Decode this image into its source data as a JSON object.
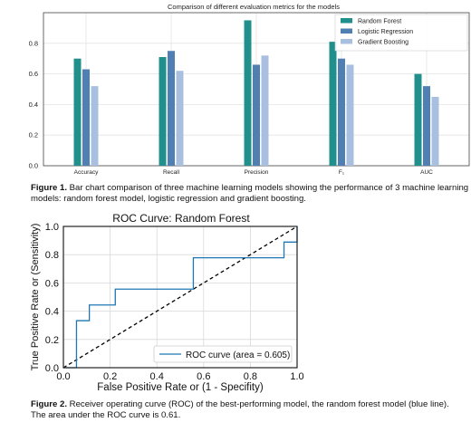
{
  "chart_data": [
    {
      "type": "bar",
      "title": "Comparison of different evaluation metrics for the models",
      "categories": [
        "Accuracy",
        "Recall",
        "Precision",
        "F₁",
        "AUC"
      ],
      "series": [
        {
          "name": "Random Forest",
          "color": "#21908c",
          "values": [
            0.7,
            0.71,
            0.95,
            0.81,
            0.6
          ]
        },
        {
          "name": "Logistic Regression",
          "color": "#4f7fb3",
          "values": [
            0.63,
            0.75,
            0.66,
            0.7,
            0.52
          ]
        },
        {
          "name": "Gradient Boosting",
          "color": "#a9bfe0",
          "values": [
            0.52,
            0.62,
            0.72,
            0.66,
            0.45
          ]
        }
      ],
      "ylim": [
        0,
        1.0
      ],
      "yticks": [
        "0.0",
        "0.2",
        "0.4",
        "0.6",
        "0.8"
      ],
      "grid": true,
      "legend_position": "top-right"
    },
    {
      "type": "line",
      "title": "ROC Curve: Random Forest",
      "xlabel": "False Positive Rate or (1 - Specifity)",
      "ylabel": "True Positive Rate or (Sensitivity)",
      "xlim": [
        0,
        1
      ],
      "ylim": [
        0,
        1
      ],
      "xticks": [
        "0.0",
        "0.2",
        "0.4",
        "0.6",
        "0.8",
        "1.0"
      ],
      "yticks": [
        "0.0",
        "0.2",
        "0.4",
        "0.6",
        "0.8",
        "1.0"
      ],
      "grid": true,
      "legend_position": "bottom-right",
      "series": [
        {
          "name": "ROC curve (area = 0.605)",
          "color": "#1f77b4",
          "points": [
            [
              0.0,
              0.0
            ],
            [
              0.056,
              0.0
            ],
            [
              0.056,
              0.333
            ],
            [
              0.111,
              0.333
            ],
            [
              0.111,
              0.444
            ],
            [
              0.222,
              0.444
            ],
            [
              0.222,
              0.556
            ],
            [
              0.556,
              0.556
            ],
            [
              0.556,
              0.778
            ],
            [
              0.944,
              0.778
            ],
            [
              0.944,
              0.889
            ],
            [
              1.0,
              0.889
            ],
            [
              1.0,
              1.0
            ]
          ]
        }
      ],
      "reference_line": {
        "points": [
          [
            0,
            0
          ],
          [
            1,
            1
          ]
        ],
        "style": "dashed",
        "color": "#000000"
      }
    }
  ],
  "captions": {
    "fig1_label": "Figure 1.",
    "fig1_text": " Bar chart comparison of three machine learning models showing the performance of 3 machine learning models: random forest model, logistic regression and gradient boosting.",
    "fig2_label": "Figure 2.",
    "fig2_text": " Receiver operating curve (ROC) of the best-performing model, the random forest model (blue line). The area under the ROC curve is 0.61."
  }
}
